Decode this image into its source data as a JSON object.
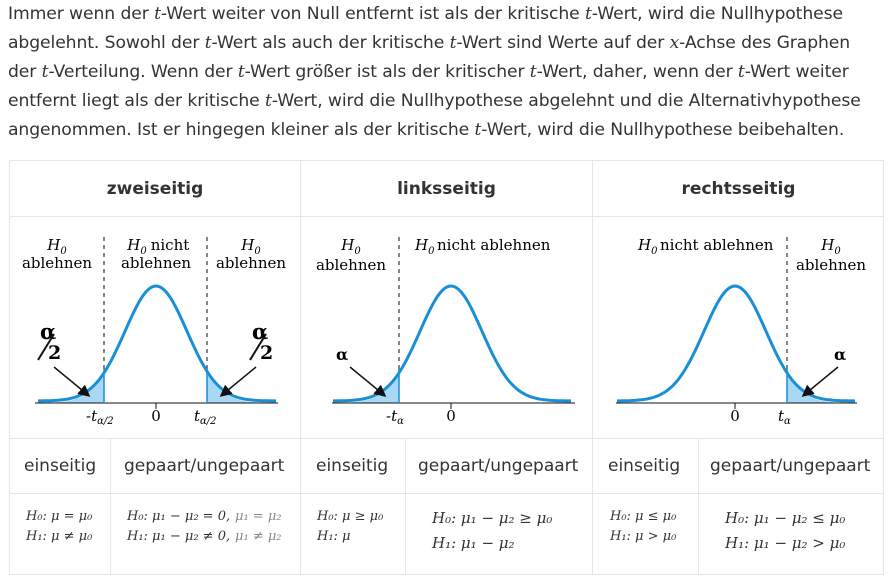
{
  "intro": {
    "line1": [
      "Immer wenn der ",
      "t",
      "-Wert weiter von Null entfernt ist als der kritische ",
      "t",
      "-Wert, wird die Nullhypothese"
    ],
    "line2": [
      "abgelehnt. Sowohl der ",
      "t",
      "-Wert als auch der kritische ",
      "t",
      "-Wert sind Werte auf der ",
      "x",
      "-Achse des Graphen"
    ],
    "line3": [
      "der ",
      "t",
      "-Verteilung. Wenn der ",
      "t",
      "-Wert größer ist als der kritischer ",
      "t",
      "-Wert, daher, wenn der ",
      "t",
      "-Wert weiter"
    ],
    "line4": [
      "entfernt liegt als der kritische ",
      "t",
      "-Wert, wird die Nullhypothese abgelehnt und die Alternativhypothese"
    ],
    "line5": [
      "angenommen. Ist er hingegen kleiner als der kritische ",
      "t",
      "-Wert, wird die Nullhypothese beibehalten."
    ]
  },
  "columns": {
    "two_sided": "zweiseitig",
    "left_sided": "linksseitig",
    "right_sided": "rechtsseitig"
  },
  "graphs": {
    "h0": "H",
    "h0_sub": "0",
    "ablehnen": "ablehnen",
    "nicht": "nicht",
    "nicht_ablehnen": "nicht ablehnen",
    "alpha": "α",
    "alpha_half_num": "α",
    "alpha_half_den": "2",
    "zero": "0",
    "t": "t",
    "t_neg": "-t",
    "sub_alpha_half": "α/2",
    "sub_alpha": "α"
  },
  "subheaders": {
    "einseitig": "einseitig",
    "gepaart": "gepaart/ungepaart"
  },
  "hypotheses": {
    "c1_einseitig": [
      "H₀: μ = μ₀",
      "H₁: μ ≠ μ₀"
    ],
    "c1_gepaart_a": [
      "H₀: μ₁ − μ₂ = 0,",
      "H₁: μ₁ − μ₂ ≠ 0,"
    ],
    "c1_gepaart_b": [
      "μ₁ = μ₂",
      "μ₁ ≠ μ₂"
    ],
    "c2_einseitig": [
      "H₀: μ ≥ μ₀",
      "H₁: μ"
    ],
    "c2_gepaart": [
      "H₀: μ₁ − μ₂ ≥ μ₀",
      "H₁: μ₁ − μ₂"
    ],
    "c3_einseitig": [
      "H₀: μ ≤ μ₀",
      "H₁: μ > μ₀"
    ],
    "c3_gepaart": [
      "H₀: μ₁ − μ₂ ≤ μ₀",
      "H₁: μ₁ − μ₂ > μ₀"
    ]
  },
  "colors": {
    "curve": "#1a8fd6",
    "fill": "#a8d8f3"
  }
}
